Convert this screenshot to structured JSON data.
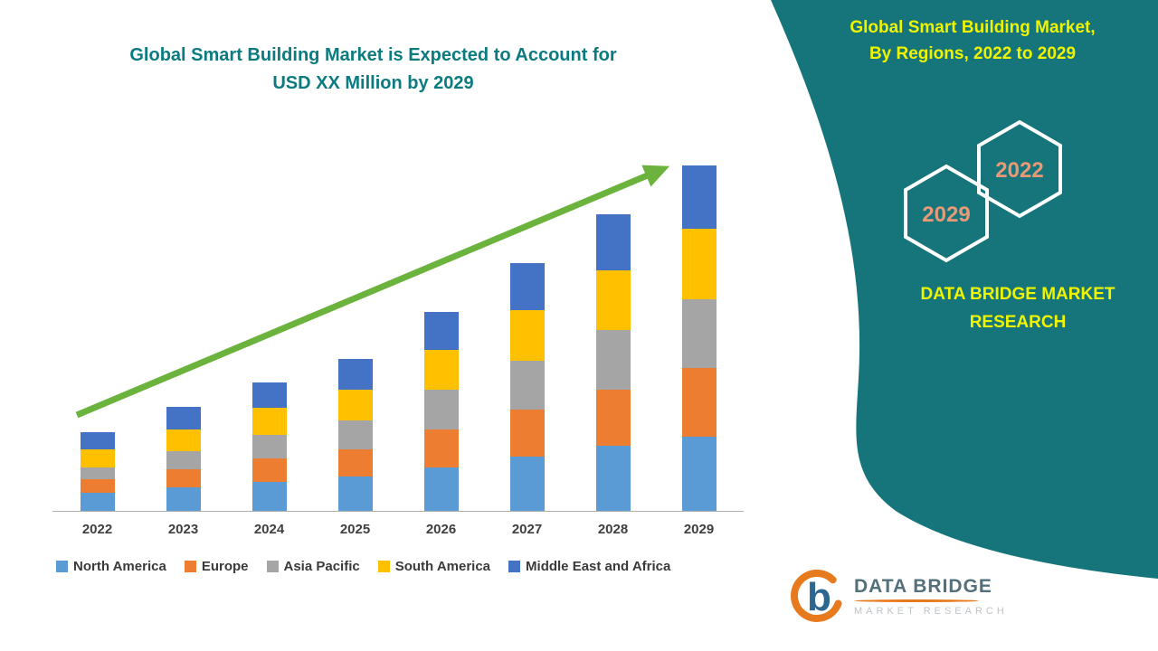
{
  "colors": {
    "title": "#0B7B80",
    "panel_text": "#EFF400",
    "hexagon_label": "#E89A78",
    "arrow": "#6CB33E",
    "axis_label": "#3F3F3F",
    "logo_orange": "#E87A1E",
    "logo_blue": "#2F6690",
    "logo_text": "#54707C",
    "logo_subtitle": "#C0C4C7"
  },
  "main_title": {
    "line1": "Global Smart Building Market is Expected to Account for",
    "line2": "USD XX Million by 2029"
  },
  "side_panel": {
    "bg_color": "#15757A",
    "heading_line1": "Global Smart Building Market,",
    "heading_line2": "By Regions, 2022 to 2029",
    "hexagons": [
      {
        "label": "2022"
      },
      {
        "label": "2029"
      }
    ],
    "brand_line1": "DATA BRIDGE MARKET",
    "brand_line2": "RESEARCH"
  },
  "logo": {
    "title": "DATA BRIDGE",
    "subtitle": "MARKET RESEARCH",
    "mark_letter": "b"
  },
  "chart_data": {
    "type": "bar",
    "stacked": true,
    "title": "Global Smart Building Market is Expected to Account for USD XX Million by 2029",
    "xlabel": "",
    "ylabel": "",
    "value_units": "relative units (numeric axis not shown; values labeled as USD XX Million)",
    "legend_position": "bottom",
    "grid": false,
    "categories": [
      "2022",
      "2023",
      "2024",
      "2025",
      "2026",
      "2027",
      "2028",
      "2029"
    ],
    "series": [
      {
        "name": "North America",
        "color": "#5B9BD5",
        "values": [
          20,
          26,
          32,
          38,
          48,
          60,
          72,
          82
        ]
      },
      {
        "name": "Europe",
        "color": "#ED7D31",
        "values": [
          15,
          20,
          26,
          30,
          42,
          52,
          62,
          76
        ]
      },
      {
        "name": "Asia Pacific",
        "color": "#A5A5A5",
        "values": [
          13,
          20,
          26,
          32,
          44,
          54,
          66,
          76
        ]
      },
      {
        "name": "South America",
        "color": "#FFC000",
        "values": [
          20,
          24,
          30,
          34,
          44,
          56,
          66,
          78
        ]
      },
      {
        "name": "Middle East and Africa",
        "color": "#4472C4",
        "values": [
          19,
          25,
          28,
          34,
          42,
          52,
          62,
          70
        ]
      }
    ],
    "trend_arrow": true,
    "trend_arrow_color": "#6CB33E"
  }
}
